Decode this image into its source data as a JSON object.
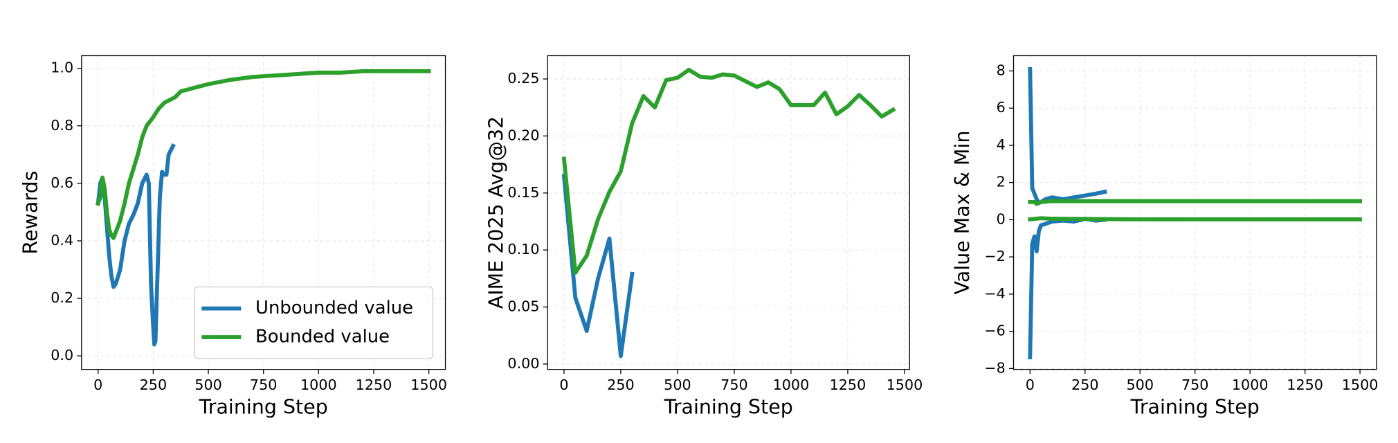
{
  "chart_data": [
    {
      "type": "line",
      "xlabel": "Training Step",
      "ylabel": "Rewards",
      "xlim": [
        -75,
        1575
      ],
      "ylim": [
        -0.047,
        1.044
      ],
      "xticks": [
        0,
        250,
        500,
        750,
        1000,
        1250,
        1500
      ],
      "yticks": [
        {
          "value": 0,
          "label": "0.0"
        },
        {
          "value": 0.2,
          "label": "0.2"
        },
        {
          "value": 0.4,
          "label": "0.4"
        },
        {
          "value": 0.6,
          "label": "0.6"
        },
        {
          "value": 0.8,
          "label": "0.8"
        },
        {
          "value": 1.0,
          "label": "1.0"
        }
      ],
      "grid": true,
      "legend": "lower right",
      "series": [
        {
          "name": "Unbounded value",
          "color": "#1f77b4",
          "x": [
            0,
            10,
            20,
            30,
            40,
            50,
            60,
            70,
            80,
            100,
            120,
            140,
            160,
            180,
            200,
            220,
            230,
            240,
            250,
            255,
            260,
            270,
            280,
            290,
            300,
            310,
            320,
            340
          ],
          "values": [
            0.53,
            0.6,
            0.62,
            0.55,
            0.45,
            0.35,
            0.28,
            0.24,
            0.25,
            0.3,
            0.4,
            0.46,
            0.49,
            0.53,
            0.6,
            0.63,
            0.6,
            0.25,
            0.1,
            0.04,
            0.05,
            0.3,
            0.55,
            0.64,
            0.63,
            0.63,
            0.7,
            0.73
          ]
        },
        {
          "name": "Bounded value",
          "color": "#2ca02c",
          "x": [
            0,
            10,
            20,
            30,
            40,
            50,
            60,
            70,
            80,
            100,
            120,
            140,
            160,
            180,
            200,
            220,
            250,
            275,
            300,
            350,
            375,
            400,
            450,
            500,
            600,
            700,
            800,
            900,
            1000,
            1100,
            1200,
            1300,
            1400,
            1500
          ],
          "values": [
            0.53,
            0.55,
            0.62,
            0.58,
            0.5,
            0.44,
            0.42,
            0.41,
            0.43,
            0.47,
            0.53,
            0.6,
            0.65,
            0.7,
            0.76,
            0.8,
            0.83,
            0.86,
            0.88,
            0.9,
            0.92,
            0.925,
            0.935,
            0.945,
            0.96,
            0.97,
            0.975,
            0.98,
            0.985,
            0.985,
            0.99,
            0.99,
            0.99,
            0.99
          ]
        }
      ]
    },
    {
      "type": "line",
      "xlabel": "Training Step",
      "ylabel": "AIME 2025 Avg@32",
      "xlim": [
        -72.5,
        1522.5
      ],
      "ylim": [
        -0.0047,
        0.2704
      ],
      "xticks": [
        0,
        250,
        500,
        750,
        1000,
        1250,
        1500
      ],
      "yticks": [
        {
          "value": 0,
          "label": "0.00"
        },
        {
          "value": 0.05,
          "label": "0.05"
        },
        {
          "value": 0.1,
          "label": "0.10"
        },
        {
          "value": 0.15,
          "label": "0.15"
        },
        {
          "value": 0.2,
          "label": "0.20"
        },
        {
          "value": 0.25,
          "label": "0.25"
        }
      ],
      "grid": true,
      "series": [
        {
          "color": "#1f77b4",
          "x": [
            0,
            50,
            100,
            150,
            200,
            250,
            300
          ],
          "values": [
            0.165,
            0.058,
            0.029,
            0.075,
            0.11,
            0.007,
            0.079
          ]
        },
        {
          "color": "#2ca02c",
          "x": [
            0,
            50,
            100,
            150,
            200,
            250,
            300,
            350,
            400,
            450,
            500,
            550,
            600,
            650,
            700,
            750,
            800,
            850,
            900,
            950,
            1000,
            1050,
            1100,
            1150,
            1200,
            1250,
            1300,
            1350,
            1400,
            1450
          ],
          "values": [
            0.18,
            0.08,
            0.095,
            0.127,
            0.151,
            0.169,
            0.211,
            0.235,
            0.225,
            0.249,
            0.251,
            0.258,
            0.252,
            0.251,
            0.254,
            0.253,
            0.248,
            0.243,
            0.247,
            0.241,
            0.227,
            0.227,
            0.227,
            0.238,
            0.219,
            0.226,
            0.236,
            0.227,
            0.217,
            0.223
          ]
        }
      ]
    },
    {
      "type": "line",
      "xlabel": "Training Step",
      "ylabel": "Value Max & Min",
      "xlim": [
        -75,
        1575
      ],
      "ylim": [
        -8.05,
        8.82
      ],
      "xticks": [
        0,
        250,
        500,
        750,
        1000,
        1250,
        1500
      ],
      "yticks": [
        {
          "value": -8,
          "label": "−8"
        },
        {
          "value": -6,
          "label": "−6"
        },
        {
          "value": -4,
          "label": "−4"
        },
        {
          "value": -2,
          "label": "−2"
        },
        0,
        2,
        4,
        6,
        8
      ],
      "grid": true,
      "series": [
        {
          "color": "#1f77b4",
          "x": [
            0,
            10,
            20,
            30,
            40,
            50,
            70,
            100,
            150,
            200,
            250,
            300,
            340
          ],
          "values": [
            8.1,
            1.7,
            1.4,
            1.1,
            0.9,
            0.95,
            1.1,
            1.2,
            1.1,
            1.2,
            1.3,
            1.4,
            1.5
          ]
        },
        {
          "color": "#1f77b4",
          "x": [
            0,
            10,
            20,
            30,
            40,
            50,
            100,
            150,
            200,
            250,
            300,
            340
          ],
          "values": [
            -7.4,
            -1.3,
            -0.9,
            -1.7,
            -0.6,
            -0.3,
            -0.1,
            -0.05,
            -0.1,
            0.05,
            -0.05,
            0.0
          ]
        },
        {
          "color": "#2ca02c",
          "x": [
            0,
            20,
            30,
            50,
            100,
            500,
            1000,
            1500
          ],
          "values": [
            0.95,
            0.95,
            0.85,
            0.95,
            1.0,
            1.0,
            1.0,
            1.0
          ]
        },
        {
          "color": "#2ca02c",
          "x": [
            0,
            50,
            100,
            500,
            1000,
            1500
          ],
          "values": [
            0.02,
            0.08,
            0.05,
            0.02,
            0.02,
            0.02
          ]
        }
      ]
    }
  ]
}
